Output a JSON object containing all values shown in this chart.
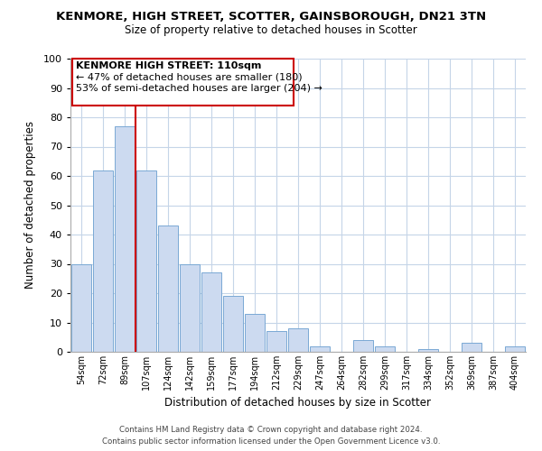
{
  "title": "KENMORE, HIGH STREET, SCOTTER, GAINSBOROUGH, DN21 3TN",
  "subtitle": "Size of property relative to detached houses in Scotter",
  "xlabel": "Distribution of detached houses by size in Scotter",
  "ylabel": "Number of detached properties",
  "bar_color": "#ccdaf0",
  "bar_edge_color": "#7aa8d4",
  "categories": [
    "54sqm",
    "72sqm",
    "89sqm",
    "107sqm",
    "124sqm",
    "142sqm",
    "159sqm",
    "177sqm",
    "194sqm",
    "212sqm",
    "229sqm",
    "247sqm",
    "264sqm",
    "282sqm",
    "299sqm",
    "317sqm",
    "334sqm",
    "352sqm",
    "369sqm",
    "387sqm",
    "404sqm"
  ],
  "values": [
    30,
    62,
    77,
    62,
    43,
    30,
    27,
    19,
    13,
    7,
    8,
    2,
    0,
    4,
    2,
    0,
    1,
    0,
    3,
    0,
    2
  ],
  "ylim": [
    0,
    100
  ],
  "yticks": [
    0,
    10,
    20,
    30,
    40,
    50,
    60,
    70,
    80,
    90,
    100
  ],
  "vline_color": "#cc0000",
  "annotation_title": "KENMORE HIGH STREET: 110sqm",
  "annotation_line1": "← 47% of detached houses are smaller (180)",
  "annotation_line2": "53% of semi-detached houses are larger (204) →",
  "annotation_box_color": "#cc0000",
  "footer1": "Contains HM Land Registry data © Crown copyright and database right 2024.",
  "footer2": "Contains public sector information licensed under the Open Government Licence v3.0.",
  "background_color": "#ffffff",
  "grid_color": "#c5d5e8"
}
